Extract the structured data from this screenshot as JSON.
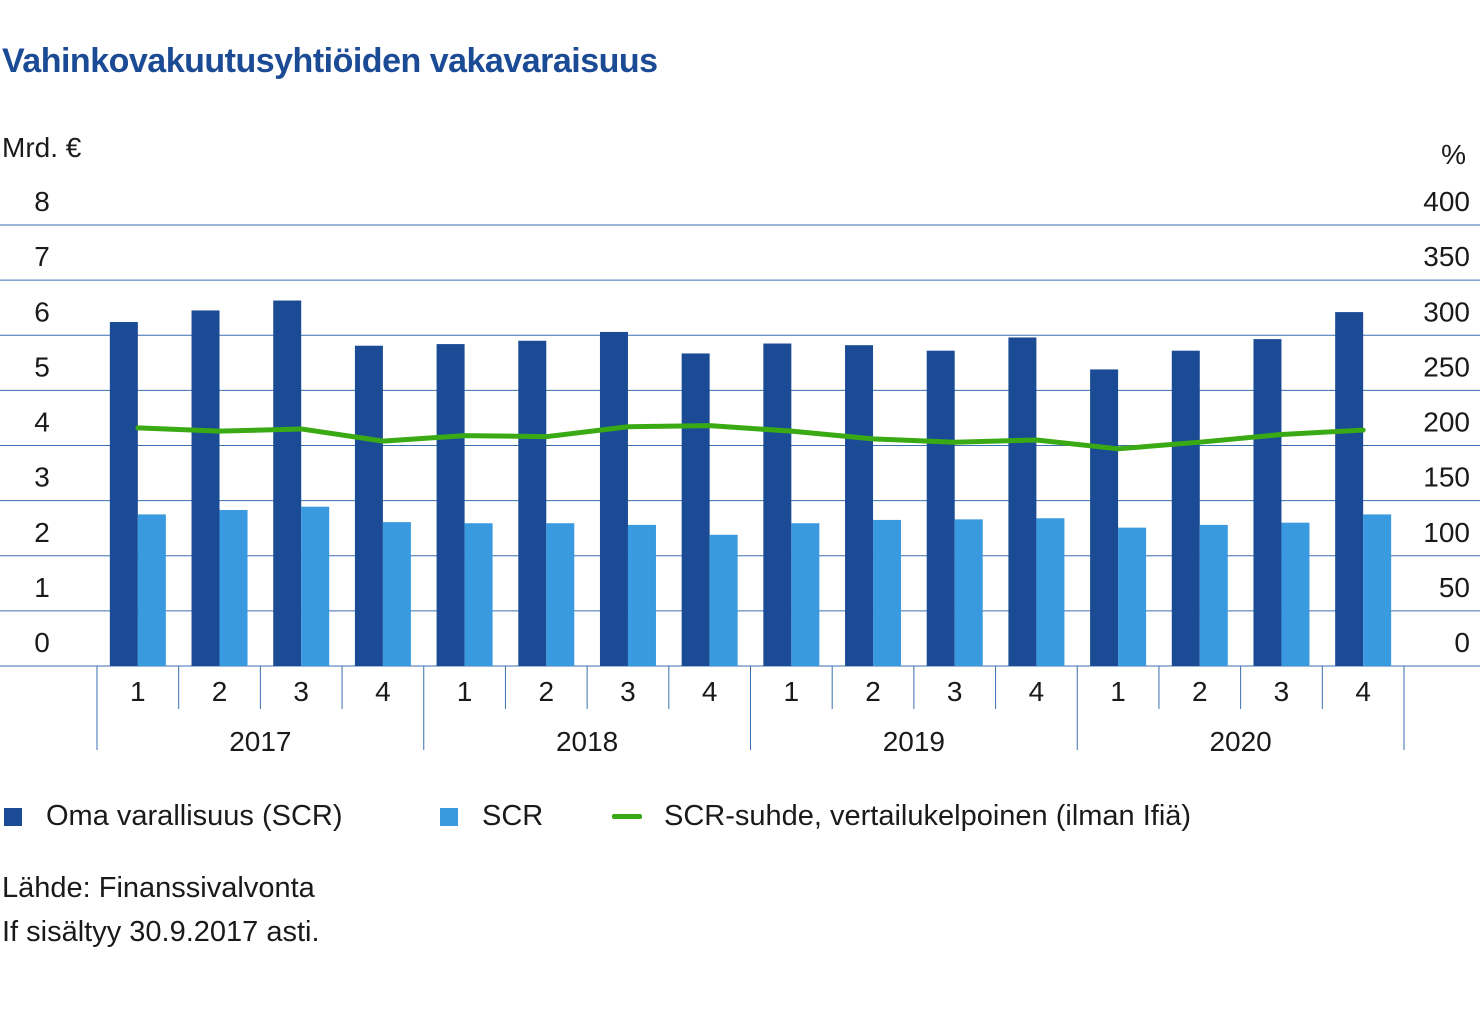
{
  "title": "Vahinkovakuutusyhtiöiden vakavaraisuus",
  "colors": {
    "own_funds": "#1c4b96",
    "scr": "#3a9ae0",
    "ratio": "#3aaa14",
    "grid": "#3a6fb0"
  },
  "chart_data": {
    "type": "bar",
    "left_axis_label": "Mrd. €",
    "right_axis_label": "%",
    "y_left_range": [
      0,
      8
    ],
    "y_left_ticks": [
      "0",
      "1",
      "2",
      "3",
      "4",
      "5",
      "6",
      "7",
      "8"
    ],
    "y_right_range": [
      0,
      400
    ],
    "y_right_ticks": [
      "0",
      "50",
      "100",
      "150",
      "200",
      "250",
      "300",
      "350",
      "400"
    ],
    "grid": true,
    "legend_position": "bottom",
    "categories": [
      "1",
      "2",
      "3",
      "4",
      "1",
      "2",
      "3",
      "4",
      "1",
      "2",
      "3",
      "4",
      "1",
      "2",
      "3",
      "4"
    ],
    "years": [
      "2017",
      "2018",
      "2019",
      "2020"
    ],
    "series": [
      {
        "name": "Oma varallisuus (SCR)",
        "type": "bar",
        "axis": "left",
        "values": [
          6.24,
          6.45,
          6.63,
          5.81,
          5.84,
          5.9,
          6.06,
          5.67,
          5.85,
          5.82,
          5.72,
          5.96,
          5.38,
          5.72,
          5.93,
          6.42
        ]
      },
      {
        "name": "SCR",
        "type": "bar",
        "axis": "left",
        "values": [
          2.75,
          2.83,
          2.89,
          2.61,
          2.59,
          2.59,
          2.56,
          2.38,
          2.59,
          2.65,
          2.66,
          2.68,
          2.51,
          2.56,
          2.6,
          2.75
        ]
      },
      {
        "name": "SCR-suhde, vertailukelpoinen (ilman Ifiä)",
        "type": "line",
        "axis": "right",
        "values": [
          216,
          213,
          215,
          204,
          209,
          208,
          217,
          218,
          213,
          206,
          203,
          205,
          197,
          203,
          210,
          214
        ]
      }
    ]
  },
  "footer": {
    "source": "Lähde: Finanssivalvonta",
    "note": "If sisältyy 30.9.2017 asti."
  }
}
